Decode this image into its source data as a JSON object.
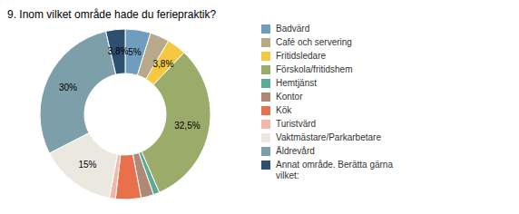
{
  "chart_data": {
    "type": "pie",
    "title": "9. Inom vilket område hade du feriepraktik?",
    "categories": [
      "Badvärd",
      "Café och servering",
      "Fritidsledare",
      "Förskola/fritidshem",
      "Hemtjänst",
      "Kontor",
      "Kök",
      "Turistvärd",
      "Vaktmästare/Parkarbetare",
      "Äldrevård",
      "Annat område. Berätta gärna\nvilket:"
    ],
    "values": [
      5.0,
      3.8,
      3.8,
      32.5,
      1.2,
      2.5,
      5.0,
      1.2,
      15.0,
      30.0,
      3.8
    ],
    "value_labels": [
      "5%",
      null,
      "3,8%",
      "32,5%",
      null,
      null,
      null,
      null,
      "15%",
      "30%",
      "3,8%"
    ],
    "colors": [
      "#6e9dbe",
      "#b8a98a",
      "#f5c842",
      "#9aab6a",
      "#5aaa96",
      "#b08878",
      "#e8704a",
      "#f0b8a8",
      "#eae8df",
      "#7d9faa",
      "#2e5070"
    ],
    "data_labels": true,
    "legend": "right"
  }
}
